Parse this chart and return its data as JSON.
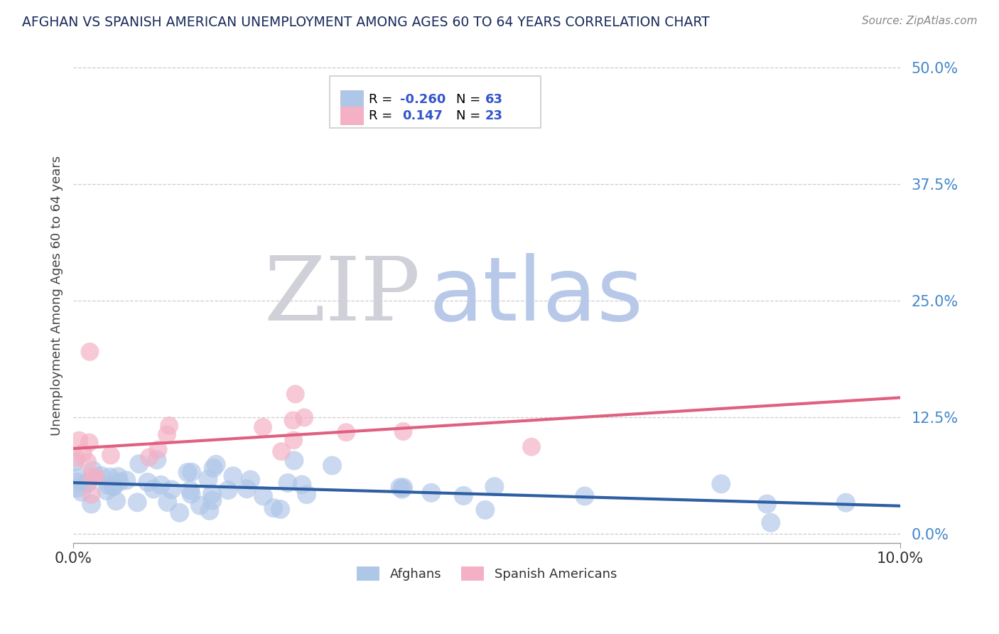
{
  "title": "AFGHAN VS SPANISH AMERICAN UNEMPLOYMENT AMONG AGES 60 TO 64 YEARS CORRELATION CHART",
  "source": "Source: ZipAtlas.com",
  "ylabel": "Unemployment Among Ages 60 to 64 years",
  "xlim": [
    0.0,
    0.1
  ],
  "ylim": [
    -0.01,
    0.52
  ],
  "yticks": [
    0.0,
    0.125,
    0.25,
    0.375,
    0.5
  ],
  "ytick_labels": [
    "0.0%",
    "12.5%",
    "25.0%",
    "37.5%",
    "50.0%"
  ],
  "xtick_labels": [
    "0.0%",
    "10.0%"
  ],
  "afghan_R": -0.26,
  "afghan_N": 63,
  "spanish_R": 0.147,
  "spanish_N": 23,
  "afghan_color": "#aec6e8",
  "afghan_line_color": "#2e5fa3",
  "spanish_color": "#f4b0c4",
  "spanish_line_color": "#e06080",
  "watermark_ZIP_color": "#d0d0d8",
  "watermark_atlas_color": "#b8c8e8",
  "background_color": "#ffffff",
  "legend_box_color": "#f5f5f5",
  "legend_border_color": "#cccccc",
  "legend_text_color": "#000000",
  "legend_value_color": "#3355cc",
  "ytick_color": "#4488cc",
  "grid_color": "#cccccc"
}
